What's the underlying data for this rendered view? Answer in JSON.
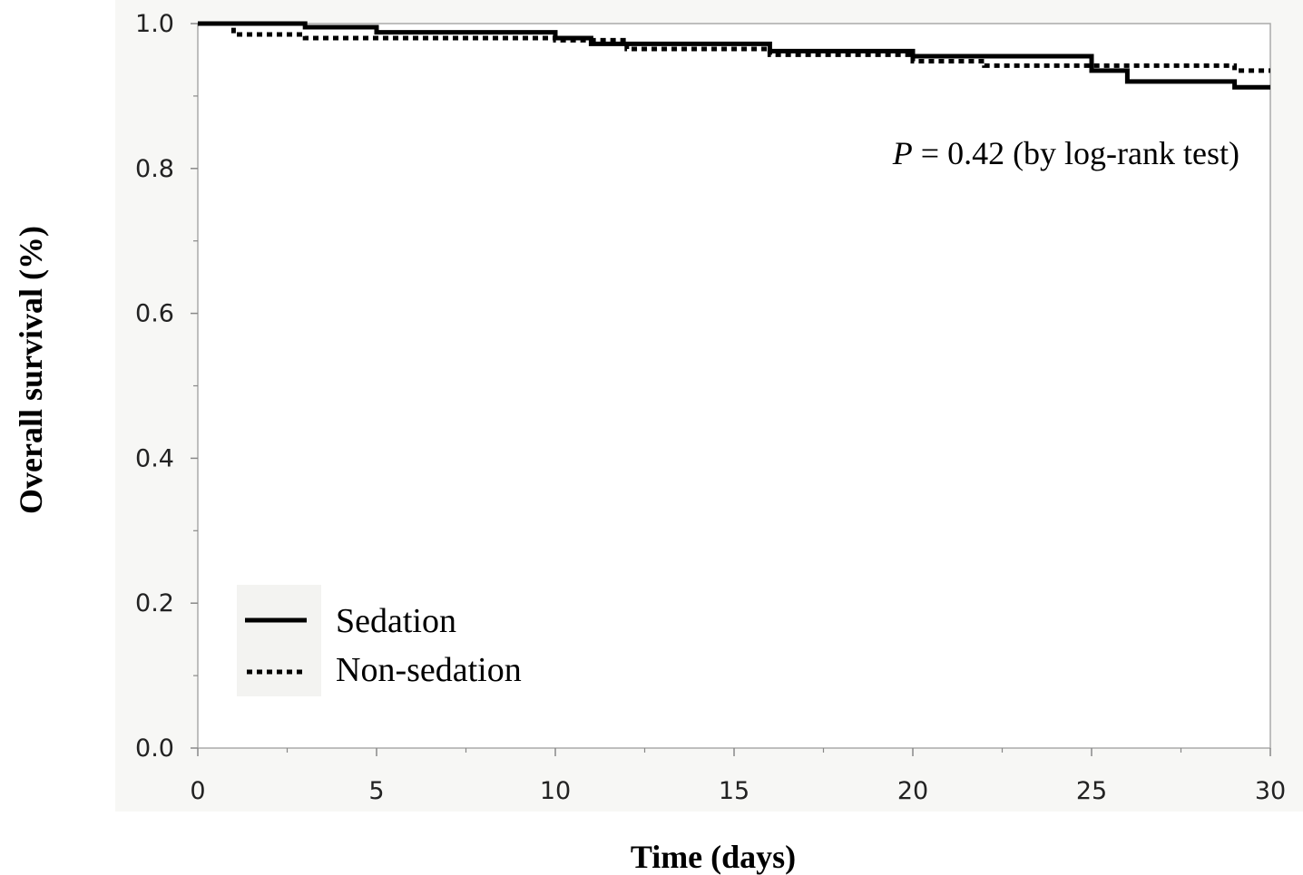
{
  "chart_data": {
    "type": "line",
    "xlabel": "Time (days)",
    "ylabel": "Overall survival (%)",
    "xlim": [
      0,
      30
    ],
    "ylim": [
      0.0,
      1.0
    ],
    "xticks": [
      "0",
      "5",
      "10",
      "15",
      "20",
      "25",
      "30"
    ],
    "yticks": [
      "0.0",
      "0.2",
      "0.4",
      "0.6",
      "0.8",
      "1.0"
    ],
    "grid": false,
    "legend_position": "bottom-left",
    "annotation": {
      "italic_part": "P",
      "rest": " = 0.42 (by log-rank test)"
    },
    "series": [
      {
        "name": "Sedation",
        "style": "solid",
        "color": "#000000",
        "steps": [
          [
            0,
            1.0
          ],
          [
            3,
            0.995
          ],
          [
            5,
            0.988
          ],
          [
            10,
            0.98
          ],
          [
            11,
            0.972
          ],
          [
            16,
            0.962
          ],
          [
            20,
            0.955
          ],
          [
            25,
            0.935
          ],
          [
            26,
            0.92
          ],
          [
            29,
            0.912
          ],
          [
            30,
            0.912
          ]
        ]
      },
      {
        "name": "Non-sedation",
        "style": "dotted",
        "color": "#000000",
        "steps": [
          [
            0,
            1.0
          ],
          [
            1,
            0.985
          ],
          [
            3,
            0.98
          ],
          [
            10,
            0.977
          ],
          [
            12,
            0.965
          ],
          [
            16,
            0.957
          ],
          [
            20,
            0.948
          ],
          [
            22,
            0.942
          ],
          [
            29,
            0.935
          ],
          [
            30,
            0.935
          ]
        ]
      }
    ]
  },
  "colors": {
    "frame_background": "#f7f7f5",
    "plot_background": "#ffffff",
    "axis": "#888888"
  }
}
